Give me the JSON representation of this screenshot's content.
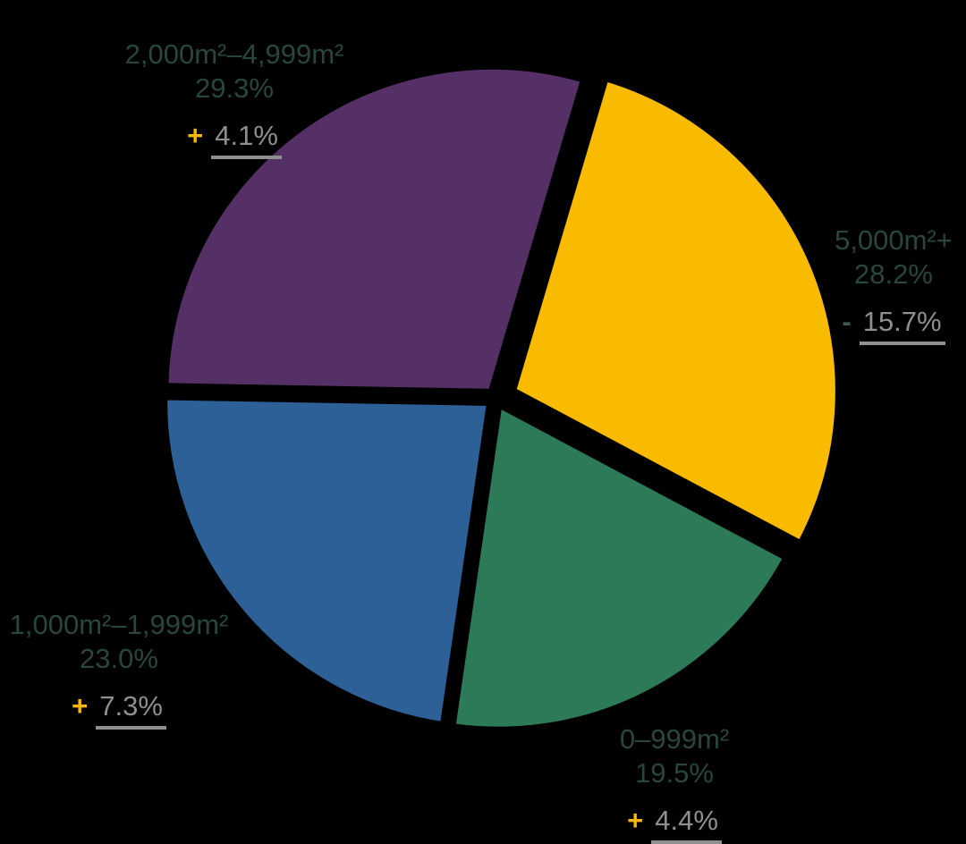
{
  "background_color": "#000000",
  "styles": {
    "label_text_color": "#28463F",
    "change_value_color": "#8F8F8F",
    "positive_sign_color": "#F5B70A",
    "negative_sign_color": "#3A5A52",
    "slice_gap_color": "#000000"
  },
  "chart_data": {
    "type": "pie",
    "title": "",
    "unit": "m²",
    "direction": "clockwise",
    "start_angle_deg": 16.5,
    "legend": "none",
    "categories": [
      "5,000m²+",
      "0–999m²",
      "1,000m²–1,999m²",
      "2,000m²–4,999m²"
    ],
    "values": [
      28.2,
      19.5,
      23.0,
      29.3
    ],
    "slices": [
      {
        "id": "5000m2-plus",
        "category": "5,000m²+",
        "value": 28.2,
        "share_label": "28.2%",
        "change_pct": -15.7,
        "change_sign": "-",
        "change_label": "15.7%",
        "color": "#F8BB00",
        "exploded": true
      },
      {
        "id": "0-999m2",
        "category": "0–999m²",
        "value": 19.5,
        "share_label": "19.5%",
        "change_pct": 4.4,
        "change_sign": "+",
        "change_label": "4.4%",
        "color": "#2C7A58",
        "exploded": false
      },
      {
        "id": "1000m2-1999m2",
        "category": "1,000m²–1,999m²",
        "value": 23.0,
        "share_label": "23.0%",
        "change_pct": 7.3,
        "change_sign": "+",
        "change_label": "7.3%",
        "color": "#2D6096",
        "exploded": false
      },
      {
        "id": "2000m2-4999m2",
        "category": "2,000m²–4,999m²",
        "value": 29.3,
        "share_label": "29.3%",
        "change_pct": 4.1,
        "change_sign": "+",
        "change_label": "4.1%",
        "color": "#553067",
        "exploded": false
      }
    ]
  }
}
